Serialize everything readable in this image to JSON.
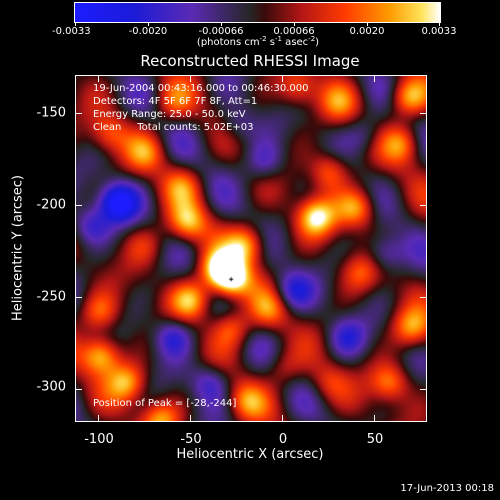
{
  "chart_data": {
    "type": "heatmap",
    "title": "Reconstructed RHESSI Image",
    "xlabel": "Heliocentric X (arcsec)",
    "ylabel": "Heliocentric Y (arcsec)",
    "xlim": [
      -113,
      78
    ],
    "ylim": [
      -321,
      -133
    ],
    "x_ticks": [
      "-100",
      "-50",
      "0",
      "50"
    ],
    "x_tick_values": [
      -100,
      -50,
      0,
      50
    ],
    "y_ticks": [
      "-150",
      "-200",
      "-250",
      "-300"
    ],
    "y_tick_values": [
      -150,
      -200,
      -250,
      -300
    ],
    "grid": false,
    "colorbar": {
      "range": [
        -0.0033,
        0.0033
      ],
      "tick_labels": [
        "-0.0033",
        "-0.0020",
        "-0.00066",
        "0.00066",
        "0.0020",
        "0.0033"
      ],
      "tick_values": [
        -0.0033,
        -0.002,
        -0.00066,
        0.00066,
        0.002,
        0.0033
      ],
      "unit_label": "(photons cm",
      "unit_exp1": "-2",
      "unit_mid": " s",
      "unit_exp2": "-1",
      "unit_end": " asec",
      "unit_exp3": "-2",
      "unit_close": ")",
      "colors": [
        "#1c1cff",
        "#1b1bd8",
        "#5a2ab4",
        "#262626",
        "#3a0a0a",
        "#b31616",
        "#ff3b00",
        "#ff9a00",
        "#ffe35a",
        "#ffffff"
      ]
    },
    "annotations": [
      "19-Jun-2004 00:43:16.000 to 00:46:30.000",
      "Detectors: 4F 5F 6F 7F 8F, Att=1",
      "Energy Range: 25.0 - 50.0 keV",
      "Clean     Total counts: 5.02E+03"
    ],
    "peak_label": "Position of Peak = [-28,-244]",
    "peak": {
      "x": -28,
      "y": -244
    },
    "footer": "17-Jun-2013 00:18",
    "peaks": [
      {
        "x": -99,
        "y": -285,
        "v": 0.003
      },
      {
        "x": -100,
        "y": -262,
        "v": 0.0018
      },
      {
        "x": -85,
        "y": -300,
        "v": 0.0025
      },
      {
        "x": -67,
        "y": -320,
        "v": 0.0022
      },
      {
        "x": -35,
        "y": -238,
        "v": 0.003
      },
      {
        "x": -28,
        "y": -244,
        "v": 0.0033
      },
      {
        "x": -20,
        "y": -225,
        "v": 0.0026
      },
      {
        "x": -50,
        "y": -255,
        "v": 0.0025
      },
      {
        "x": -52,
        "y": -213,
        "v": 0.0024
      },
      {
        "x": -28,
        "y": -270,
        "v": 0.002
      },
      {
        "x": -8,
        "y": -260,
        "v": 0.0016
      },
      {
        "x": 18,
        "y": -210,
        "v": 0.003
      },
      {
        "x": 25,
        "y": -185,
        "v": 0.002
      },
      {
        "x": 40,
        "y": -205,
        "v": 0.0024
      },
      {
        "x": 42,
        "y": -240,
        "v": 0.0015
      },
      {
        "x": -55,
        "y": -193,
        "v": 0.0015
      },
      {
        "x": -75,
        "y": -175,
        "v": 0.0016
      },
      {
        "x": -95,
        "y": -165,
        "v": 0.0016
      },
      {
        "x": -60,
        "y": -148,
        "v": 0.0015
      },
      {
        "x": 8,
        "y": -140,
        "v": 0.0018
      },
      {
        "x": 30,
        "y": -148,
        "v": 0.0015
      },
      {
        "x": 68,
        "y": -145,
        "v": 0.0026
      },
      {
        "x": 65,
        "y": -170,
        "v": 0.002
      },
      {
        "x": 70,
        "y": -270,
        "v": 0.0022
      },
      {
        "x": 58,
        "y": -300,
        "v": 0.0022
      },
      {
        "x": 25,
        "y": -300,
        "v": 0.0012
      },
      {
        "x": -20,
        "y": -310,
        "v": 0.0018
      },
      {
        "x": 0,
        "y": -292,
        "v": 0.0012
      },
      {
        "x": -75,
        "y": -225,
        "v": 0.001
      },
      {
        "x": -90,
        "y": -202,
        "v": -0.0033
      },
      {
        "x": -105,
        "y": -215,
        "v": -0.0018
      },
      {
        "x": -60,
        "y": -275,
        "v": -0.002
      },
      {
        "x": -10,
        "y": -180,
        "v": -0.0015
      },
      {
        "x": 5,
        "y": -250,
        "v": -0.0018
      },
      {
        "x": 55,
        "y": -230,
        "v": -0.0018
      },
      {
        "x": -40,
        "y": -300,
        "v": -0.0016
      },
      {
        "x": 35,
        "y": -275,
        "v": -0.0015
      },
      {
        "x": -25,
        "y": -160,
        "v": -0.0012
      },
      {
        "x": 45,
        "y": -165,
        "v": -0.0012
      }
    ]
  }
}
